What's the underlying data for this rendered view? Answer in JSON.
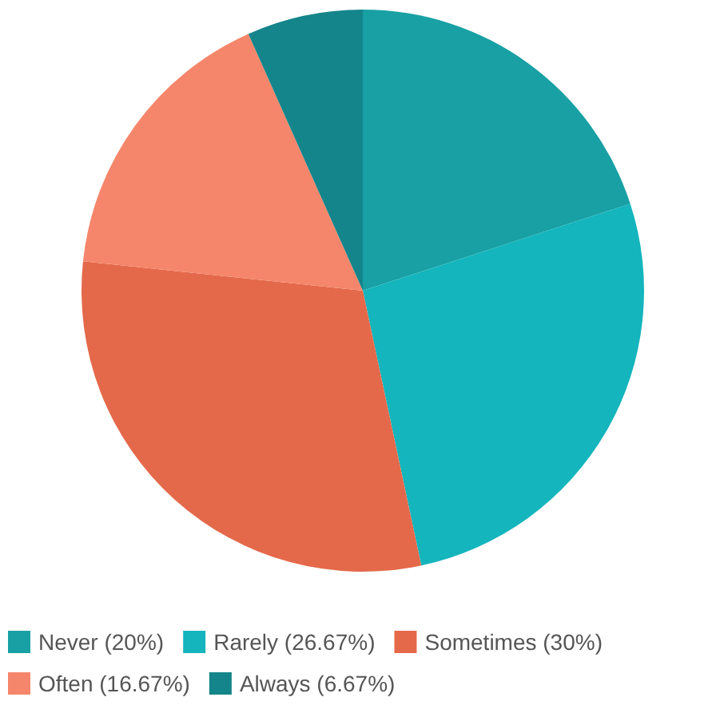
{
  "chart_data": {
    "type": "pie",
    "categories": [
      "Never (20%)",
      "Rarely (26.67%)",
      "Sometimes (30%)",
      "Often (16.67%)",
      "Always (6.67%)"
    ],
    "values": [
      20,
      26.67,
      30,
      16.67,
      6.67
    ],
    "colors": [
      "#18a0a4",
      "#14b5bd",
      "#e4694a",
      "#f5866b",
      "#14858a"
    ],
    "legend": "bottom"
  }
}
